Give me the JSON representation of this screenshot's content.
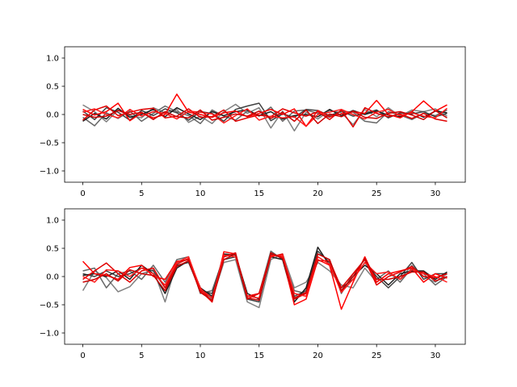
{
  "chart_data": [
    {
      "type": "line",
      "title": "",
      "xlabel": "",
      "ylabel": "",
      "xlim": [
        -1.55,
        32.55
      ],
      "ylim": [
        -1.2,
        1.2
      ],
      "xticks": [
        0,
        5,
        10,
        15,
        20,
        25,
        30
      ],
      "xtick_labels": [
        "0",
        "5",
        "10",
        "15",
        "20",
        "25",
        "30"
      ],
      "yticks": [
        1.0,
        0.5,
        0.0,
        -0.5,
        -1.0
      ],
      "ytick_labels": [
        "1.0",
        "0.5",
        "0.0",
        "−0.5",
        "−1.0"
      ],
      "grid": false,
      "x": [
        0,
        1,
        2,
        3,
        4,
        5,
        6,
        7,
        8,
        9,
        10,
        11,
        12,
        13,
        14,
        15,
        16,
        17,
        18,
        19,
        20,
        21,
        22,
        23,
        24,
        25,
        26,
        27,
        28,
        29,
        30,
        31
      ],
      "series": [
        {
          "color": "#808080",
          "values": [
            0.17,
            0.05,
            -0.13,
            0.08,
            -0.02,
            -0.06,
            0.12,
            0.03,
            0.09,
            -0.14,
            -0.03,
            -0.16,
            0.05,
            0.18,
            0.02,
            0.12,
            -0.24,
            0.06,
            -0.29,
            0.04,
            -0.08,
            0.07,
            0.03,
            -0.18,
            0.09,
            -0.04,
            0.12,
            -0.03,
            0.08,
            0.05,
            0.1,
            -0.03
          ]
        },
        {
          "color": "#666666",
          "values": [
            -0.05,
            -0.2,
            0.03,
            -0.07,
            0.06,
            -0.12,
            0.02,
            0.15,
            0.05,
            -0.02,
            -0.16,
            0.08,
            -0.03,
            -0.1,
            0.06,
            -0.03,
            0.13,
            -0.12,
            0.06,
            0.08,
            0.02,
            -0.05,
            0.06,
            0.04,
            -0.12,
            -0.15,
            0.05,
            -0.01,
            -0.09,
            0.02,
            -0.02,
            0.08
          ]
        },
        {
          "color": "#404040",
          "values": [
            0.06,
            -0.09,
            0.12,
            0.04,
            -0.1,
            0.07,
            -0.02,
            0.1,
            0.03,
            -0.1,
            0.05,
            0.02,
            -0.12,
            0.09,
            0.15,
            0.2,
            -0.11,
            0.01,
            -0.05,
            0.09,
            0.07,
            -0.02,
            0.06,
            -0.03,
            0.02,
            0.08,
            -0.06,
            0.03,
            0.01,
            0.05,
            -0.04,
            0.02
          ]
        },
        {
          "color": "#1f1f1f",
          "values": [
            -0.12,
            0.02,
            -0.08,
            0.11,
            -0.05,
            0.0,
            0.09,
            -0.04,
            0.12,
            0.01,
            -0.09,
            0.05,
            -0.02,
            0.05,
            0.08,
            -0.02,
            0.05,
            -0.08,
            -0.02,
            0.0,
            -0.04,
            0.09,
            -0.02,
            0.07,
            0.0,
            0.06,
            -0.01,
            -0.04,
            0.05,
            -0.05,
            0.06,
            0.03
          ]
        },
        {
          "color": "#ff0000",
          "values": [
            0.09,
            -0.01,
            0.05,
            0.2,
            -0.11,
            0.03,
            -0.06,
            0.0,
            0.36,
            0.04,
            0.0,
            -0.05,
            0.03,
            0.06,
            -0.04,
            0.02,
            0.09,
            0.0,
            0.1,
            -0.21,
            0.07,
            -0.04,
            0.01,
            0.05,
            0.02,
            0.25,
            0.0,
            -0.06,
            0.05,
            0.24,
            0.06,
            0.17
          ]
        },
        {
          "color": "#e00000",
          "values": [
            -0.1,
            0.08,
            0.15,
            -0.02,
            0.04,
            0.09,
            0.11,
            -0.06,
            -0.03,
            0.1,
            -0.05,
            -0.04,
            0.08,
            -0.12,
            -0.06,
            -0.01,
            -0.04,
            0.1,
            0.03,
            -0.03,
            0.05,
            -0.09,
            0.08,
            -0.22,
            0.12,
            0.02,
            -0.04,
            0.01,
            -0.07,
            0.02,
            -0.08,
            -0.12
          ]
        },
        {
          "color": "#ff1a1a",
          "values": [
            0.04,
            0.1,
            0.0,
            -0.06,
            0.09,
            -0.03,
            0.05,
            0.02,
            -0.08,
            0.06,
            0.04,
            0.01,
            -0.15,
            -0.02,
            0.1,
            -0.1,
            -0.03,
            -0.06,
            -0.04,
            -0.21,
            0.0,
            0.04,
            0.09,
            0.0,
            -0.08,
            0.04,
            0.09,
            -0.02,
            0.03,
            -0.03,
            -0.06,
            0.11
          ]
        },
        {
          "color": "#cc0000",
          "values": [
            0.0,
            -0.05,
            -0.03,
            0.07,
            0.0,
            0.04,
            -0.09,
            0.05,
            -0.04,
            -0.06,
            0.08,
            -0.1,
            -0.05,
            0.01,
            -0.03,
            0.06,
            -0.07,
            0.04,
            -0.12,
            0.08,
            -0.16,
            0.01,
            -0.04,
            0.06,
            -0.05,
            -0.07,
            0.02,
            0.05,
            -0.01,
            -0.09,
            0.07,
            -0.06
          ]
        }
      ]
    },
    {
      "type": "line",
      "title": "",
      "xlabel": "",
      "ylabel": "",
      "xlim": [
        -1.55,
        32.55
      ],
      "ylim": [
        -1.2,
        1.2
      ],
      "xticks": [
        0,
        5,
        10,
        15,
        20,
        25,
        30
      ],
      "xtick_labels": [
        "0",
        "5",
        "10",
        "15",
        "20",
        "25",
        "30"
      ],
      "yticks": [
        1.0,
        0.5,
        0.0,
        -0.5,
        -1.0
      ],
      "ytick_labels": [
        "1.0",
        "0.5",
        "0.0",
        "−0.5",
        "−1.0"
      ],
      "grid": false,
      "x": [
        0,
        1,
        2,
        3,
        4,
        5,
        6,
        7,
        8,
        9,
        10,
        11,
        12,
        13,
        14,
        15,
        16,
        17,
        18,
        19,
        20,
        21,
        22,
        23,
        24,
        25,
        26,
        27,
        28,
        29,
        30,
        31
      ],
      "series": [
        {
          "color": "#808080",
          "values": [
            -0.25,
            0.1,
            -0.02,
            -0.27,
            -0.18,
            0.05,
            0.12,
            -0.45,
            0.25,
            0.3,
            -0.2,
            -0.4,
            0.25,
            0.3,
            -0.45,
            -0.55,
            0.3,
            0.4,
            -0.2,
            -0.1,
            0.25,
            0.1,
            -0.15,
            -0.2,
            0.15,
            -0.1,
            0.05,
            -0.05,
            0.2,
            0.0,
            -0.1,
            0.05
          ]
        },
        {
          "color": "#666666",
          "values": [
            0.1,
            0.15,
            -0.2,
            0.05,
            0.1,
            -0.05,
            0.2,
            -0.1,
            0.3,
            0.35,
            -0.3,
            -0.25,
            0.35,
            0.4,
            -0.35,
            -0.3,
            0.45,
            0.3,
            -0.25,
            -0.3,
            0.4,
            0.3,
            -0.3,
            0.05,
            0.3,
            -0.05,
            0.1,
            -0.1,
            0.15,
            0.05,
            -0.15,
            0.0
          ]
        },
        {
          "color": "#404040",
          "values": [
            0.05,
            0.0,
            0.1,
            0.0,
            0.05,
            0.15,
            0.1,
            -0.2,
            0.2,
            0.25,
            -0.25,
            -0.3,
            0.3,
            0.35,
            -0.4,
            -0.45,
            0.4,
            0.35,
            -0.35,
            -0.25,
            0.45,
            0.25,
            -0.2,
            -0.05,
            0.25,
            0.0,
            -0.2,
            0.0,
            0.25,
            -0.05,
            0.05,
            0.05
          ]
        },
        {
          "color": "#1f1f1f",
          "values": [
            0.02,
            0.05,
            0.0,
            0.1,
            -0.05,
            0.2,
            0.05,
            -0.3,
            0.15,
            0.28,
            -0.2,
            -0.35,
            0.4,
            0.38,
            -0.3,
            -0.4,
            0.35,
            0.3,
            -0.45,
            -0.2,
            0.52,
            0.2,
            -0.25,
            0.0,
            0.2,
            0.05,
            -0.15,
            0.05,
            0.1,
            0.1,
            -0.05,
            0.08
          ]
        },
        {
          "color": "#ff0000",
          "values": [
            0.27,
            0.05,
            0.02,
            -0.05,
            0.16,
            0.2,
            0.0,
            -0.05,
            0.27,
            0.3,
            -0.25,
            -0.45,
            0.44,
            0.4,
            -0.35,
            -0.3,
            0.38,
            0.35,
            -0.5,
            -0.4,
            0.3,
            0.2,
            -0.58,
            -0.1,
            0.35,
            -0.1,
            0.05,
            0.1,
            0.15,
            -0.1,
            0.05,
            -0.03
          ]
        },
        {
          "color": "#e00000",
          "values": [
            -0.05,
            0.1,
            0.24,
            0.05,
            -0.1,
            0.1,
            0.15,
            -0.2,
            0.22,
            0.32,
            -0.2,
            -0.45,
            0.35,
            0.42,
            -0.4,
            -0.3,
            0.35,
            0.4,
            -0.4,
            -0.3,
            0.28,
            0.28,
            -0.2,
            0.05,
            0.3,
            -0.15,
            0.0,
            0.08,
            0.18,
            0.0,
            -0.02,
            0.05
          ]
        },
        {
          "color": "#ff1a1a",
          "values": [
            0.0,
            -0.1,
            0.12,
            0.1,
            0.0,
            0.15,
            0.05,
            -0.15,
            0.25,
            0.35,
            -0.22,
            -0.38,
            0.38,
            0.35,
            -0.35,
            -0.38,
            0.36,
            0.38,
            -0.3,
            -0.35,
            0.35,
            0.22,
            -0.28,
            -0.05,
            0.25,
            0.05,
            0.08,
            -0.05,
            0.12,
            0.05,
            0.0,
            -0.1
          ]
        },
        {
          "color": "#cc0000",
          "values": [
            -0.1,
            -0.05,
            0.05,
            -0.08,
            0.12,
            0.05,
            0.02,
            -0.25,
            0.18,
            0.28,
            -0.28,
            -0.42,
            0.3,
            0.4,
            -0.38,
            -0.42,
            0.42,
            0.32,
            -0.38,
            -0.28,
            0.4,
            0.3,
            -0.25,
            0.0,
            0.32,
            -0.05,
            -0.05,
            0.0,
            0.08,
            0.08,
            -0.08,
            0.0
          ]
        }
      ]
    }
  ]
}
